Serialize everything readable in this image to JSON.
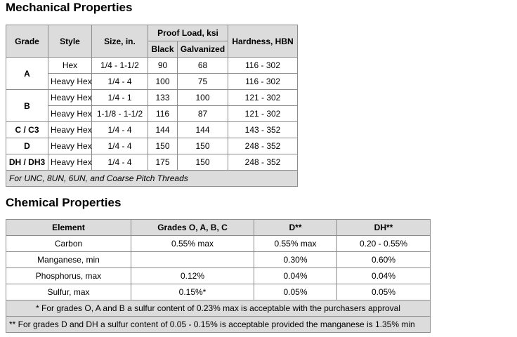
{
  "mechanical": {
    "title": "Mechanical Properties",
    "headers": {
      "grade": "Grade",
      "style": "Style",
      "size": "Size, in.",
      "proof_load": "Proof Load, ksi",
      "black": "Black",
      "galvanized": "Galvanized",
      "hardness": "Hardness, HBN"
    },
    "rows": [
      {
        "grade": "A",
        "style": "Hex",
        "size": "1/4 - 1-1/2",
        "black": "90",
        "galvanized": "68",
        "hardness": "116 - 302"
      },
      {
        "grade": "",
        "style": "Heavy Hex",
        "size": "1/4 - 4",
        "black": "100",
        "galvanized": "75",
        "hardness": "116 - 302"
      },
      {
        "grade": "B",
        "style": "Heavy Hex",
        "size": "1/4 - 1",
        "black": "133",
        "galvanized": "100",
        "hardness": "121 - 302"
      },
      {
        "grade": "",
        "style": "Heavy Hex",
        "size": "1-1/8 - 1-1/2",
        "black": "116",
        "galvanized": "87",
        "hardness": "121 - 302"
      },
      {
        "grade": "C / C3",
        "style": "Heavy Hex",
        "size": "1/4 - 4",
        "black": "144",
        "galvanized": "144",
        "hardness": "143 - 352"
      },
      {
        "grade": "D",
        "style": "Heavy Hex",
        "size": "1/4 - 4",
        "black": "150",
        "galvanized": "150",
        "hardness": "248 - 352"
      },
      {
        "grade": "DH / DH3",
        "style": "Heavy Hex",
        "size": "1/4 - 4",
        "black": "175",
        "galvanized": "150",
        "hardness": "248 - 352"
      }
    ],
    "note": "For UNC, 8UN, 6UN, and Coarse Pitch Threads"
  },
  "chemical": {
    "title": "Chemical Properties",
    "headers": {
      "element": "Element",
      "grades_oab_c": "Grades O, A, B, C",
      "d": "D**",
      "dh": "DH**"
    },
    "rows": [
      {
        "element": "Carbon",
        "oabc": "0.55% max",
        "d": "0.55% max",
        "dh": "0.20 - 0.55%"
      },
      {
        "element": "Manganese, min",
        "oabc": "",
        "d": "0.30%",
        "dh": "0.60%"
      },
      {
        "element": "Phosphorus, max",
        "oabc": "0.12%",
        "d": "0.04%",
        "dh": "0.04%"
      },
      {
        "element": "Sulfur, max",
        "oabc": "0.15%*",
        "d": "0.05%",
        "dh": "0.05%"
      }
    ],
    "footnote1": "* For grades O, A and B a sulfur content of 0.23% max is acceptable with the purchasers approval",
    "footnote2": "** For grades D and DH a sulfur content of 0.05 - 0.15% is acceptable provided the manganese is 1.35% min"
  }
}
